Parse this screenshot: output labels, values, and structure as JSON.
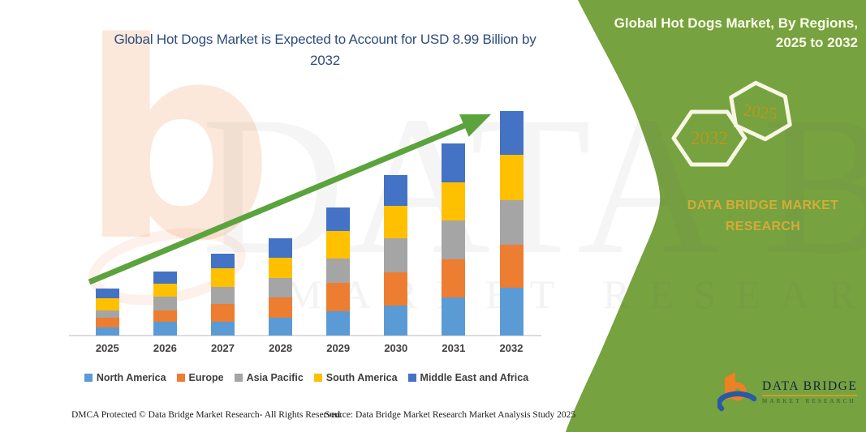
{
  "title": {
    "line1": "Global Hot Dogs Market is Expected to Account for USD 8.99 Billion by",
    "line2": "2032"
  },
  "sidebar": {
    "heading": {
      "line1": "Global Hot Dogs Market, By Regions,",
      "line2": "2025 to 2032"
    },
    "hexagons": [
      {
        "label": "2032"
      },
      {
        "label": "2025"
      }
    ],
    "brand": {
      "line1": "DATA BRIDGE MARKET",
      "line2": "RESEARCH"
    },
    "logo": {
      "title": "DATA BRIDGE",
      "subtitle": "MARKET RESEARCH"
    }
  },
  "watermark": {
    "letter": "b",
    "line1": "DATA BRIDGE",
    "line2": "MARKET RESEARCH"
  },
  "footer": {
    "dmca": "DMCA Protected © Data Bridge Market Research-  All Rights Reserved.",
    "source": "Source: Data Bridge Market Research  Market Analysis Study 2025"
  },
  "colors": {
    "panel_green": "#76a23f",
    "arrow_green": "#5ba33c",
    "title_navy": "#2e4d7e",
    "sidebar_gold": "#d3ac39",
    "hex_year_gold": "#b5991f",
    "hex_stroke_cream": "#f7f6e3",
    "axis_text": "#3f3f3f",
    "logo_orange": "#ef8023",
    "logo_blue": "#2b59a5"
  },
  "chart_data": {
    "type": "bar",
    "stacked": true,
    "unit": "USD Billion",
    "title": "Global Hot Dogs Market is Expected to Account for USD 8.99 Billion by 2032",
    "categories": [
      "2025",
      "2026",
      "2027",
      "2028",
      "2029",
      "2030",
      "2031",
      "2032"
    ],
    "series": [
      {
        "name": "North America",
        "color": "#5B9BD5",
        "values": [
          0.34,
          0.54,
          0.56,
          0.73,
          0.98,
          1.21,
          1.51,
          1.9
        ]
      },
      {
        "name": "Europe",
        "color": "#ED7D31",
        "values": [
          0.39,
          0.46,
          0.71,
          0.81,
          1.14,
          1.33,
          1.54,
          1.72
        ]
      },
      {
        "name": "Asia Pacific",
        "color": "#A5A5A5",
        "values": [
          0.29,
          0.55,
          0.68,
          0.75,
          0.98,
          1.36,
          1.55,
          1.79
        ]
      },
      {
        "name": "South America",
        "color": "#FFC000",
        "values": [
          0.49,
          0.53,
          0.73,
          0.83,
          1.08,
          1.3,
          1.55,
          1.82
        ]
      },
      {
        "name": "Middle East and Africa",
        "color": "#4472C4",
        "values": [
          0.38,
          0.5,
          0.59,
          0.78,
          0.95,
          1.22,
          1.54,
          1.76
        ]
      }
    ],
    "totals_estimated": [
      1.89,
      2.58,
      3.27,
      3.9,
      5.13,
      6.42,
      7.69,
      8.99
    ],
    "final_value_label": "USD 8.99 Billion by 2032",
    "xlabel": "",
    "ylabel": "",
    "ylim": [
      0,
      9.2
    ],
    "gridlines": false,
    "legend_position": "bottom",
    "annotation": "upward trend arrow across bars"
  }
}
